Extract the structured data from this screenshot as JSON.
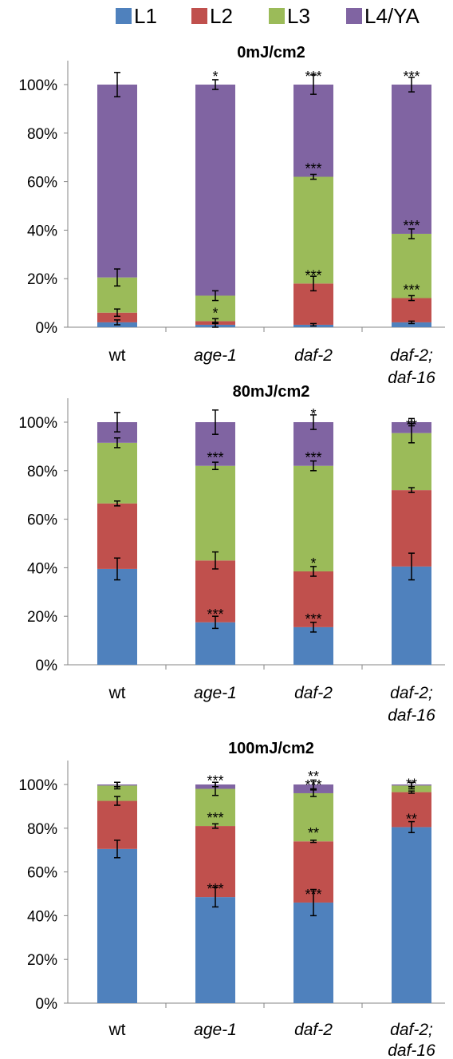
{
  "legend": {
    "position": "top",
    "items": [
      {
        "label": "L1",
        "color": "#4F81BD"
      },
      {
        "label": "L2",
        "color": "#C0504D"
      },
      {
        "label": "L3",
        "color": "#9BBB59"
      },
      {
        "label": "L4/YA",
        "color": "#8064A2"
      }
    ]
  },
  "chart_data": [
    {
      "type": "bar",
      "stacked": true,
      "title": "0mJ/cm2",
      "categories": [
        [
          "wt"
        ],
        [
          "age-1"
        ],
        [
          "daf-2"
        ],
        [
          "daf-2;",
          "daf-16"
        ]
      ],
      "ylim": [
        0,
        100
      ],
      "yticks": [
        "0%",
        "20%",
        "40%",
        "60%",
        "80%",
        "100%"
      ],
      "series": [
        {
          "name": "L1",
          "color": "#4F81BD",
          "values": [
            2,
            1,
            1,
            2
          ],
          "errors": [
            1,
            1,
            0.5,
            0.5
          ],
          "sig": [
            "",
            "",
            "",
            ""
          ]
        },
        {
          "name": "L2",
          "color": "#C0504D",
          "values": [
            4,
            1.5,
            17,
            10
          ],
          "errors": [
            1.5,
            1,
            3,
            1
          ],
          "sig": [
            "",
            "*",
            "***",
            "***"
          ]
        },
        {
          "name": "L3",
          "color": "#9BBB59",
          "values": [
            14.5,
            10.5,
            44,
            26.5
          ],
          "errors": [
            3.5,
            2,
            1,
            2
          ],
          "sig": [
            "",
            "",
            "***",
            "***"
          ]
        },
        {
          "name": "L4/YA",
          "color": "#8064A2",
          "values": [
            79.5,
            87,
            38,
            61.5
          ],
          "errors": [
            5,
            2,
            4,
            3
          ],
          "sig": [
            "",
            "*",
            "***",
            "***"
          ]
        }
      ]
    },
    {
      "type": "bar",
      "stacked": true,
      "title": "80mJ/cm2",
      "categories": [
        [
          "wt"
        ],
        [
          "age-1"
        ],
        [
          "daf-2"
        ],
        [
          "daf-2;",
          "daf-16"
        ]
      ],
      "ylim": [
        0,
        100
      ],
      "yticks": [
        "0%",
        "20%",
        "40%",
        "60%",
        "80%",
        "100%"
      ],
      "series": [
        {
          "name": "L1",
          "color": "#4F81BD",
          "values": [
            39.5,
            17.5,
            15.5,
            40.5
          ],
          "errors": [
            4.5,
            2.5,
            2,
            5.5
          ],
          "sig": [
            "",
            "***",
            "***",
            ""
          ]
        },
        {
          "name": "L2",
          "color": "#C0504D",
          "values": [
            27,
            25.5,
            23,
            31.5
          ],
          "errors": [
            1,
            3.5,
            2,
            1
          ],
          "sig": [
            "",
            "",
            "*",
            ""
          ]
        },
        {
          "name": "L3",
          "color": "#9BBB59",
          "values": [
            25,
            39,
            43.5,
            23.5
          ],
          "errors": [
            2,
            1.5,
            2,
            4
          ],
          "sig": [
            "",
            "***",
            "***",
            "**"
          ]
        },
        {
          "name": "L4/YA",
          "color": "#8064A2",
          "values": [
            8.5,
            18,
            18,
            4.5
          ],
          "errors": [
            4,
            5,
            3,
            1.5
          ],
          "sig": [
            "",
            "",
            "*",
            ""
          ]
        }
      ]
    },
    {
      "type": "bar",
      "stacked": true,
      "title": "100mJ/cm2",
      "categories": [
        [
          "wt"
        ],
        [
          "age-1"
        ],
        [
          "daf-2"
        ],
        [
          "daf-2;",
          "daf-16"
        ]
      ],
      "ylim": [
        0,
        100
      ],
      "yticks": [
        "0%",
        "20%",
        "40%",
        "60%",
        "80%",
        "100%"
      ],
      "series": [
        {
          "name": "L1",
          "color": "#4F81BD",
          "values": [
            70.5,
            48.5,
            46,
            80.5
          ],
          "errors": [
            4,
            4.5,
            6,
            2.5
          ],
          "sig": [
            "",
            "***",
            "***",
            "**"
          ]
        },
        {
          "name": "L2",
          "color": "#C0504D",
          "values": [
            22,
            32.5,
            28,
            16
          ],
          "errors": [
            2,
            1,
            0.5,
            0.5
          ],
          "sig": [
            "",
            "***",
            "**",
            "**"
          ]
        },
        {
          "name": "L3",
          "color": "#9BBB59",
          "values": [
            7,
            17,
            22,
            3
          ],
          "errors": [
            1.5,
            3,
            1.5,
            1.5
          ],
          "sig": [
            "",
            "***",
            "***",
            ""
          ]
        },
        {
          "name": "L4/YA",
          "color": "#8064A2",
          "values": [
            0.5,
            2,
            4,
            0.5
          ],
          "errors": [
            1,
            1,
            2,
            1
          ],
          "sig": [
            "",
            "",
            "**",
            ""
          ]
        }
      ]
    }
  ]
}
